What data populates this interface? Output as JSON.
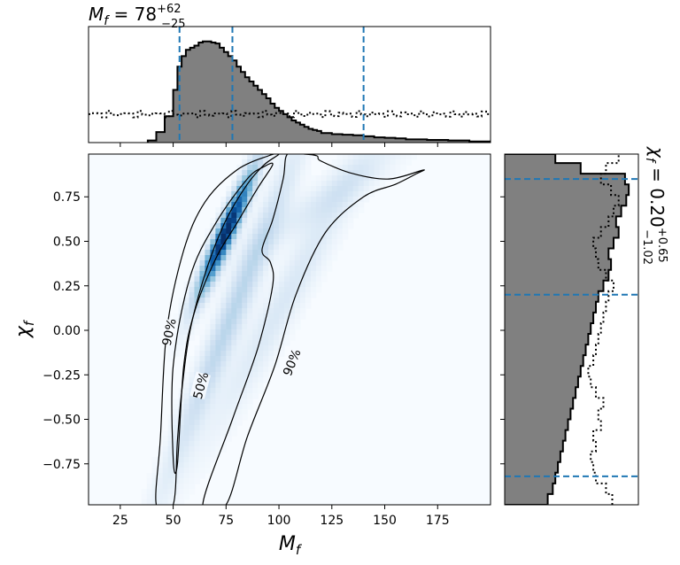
{
  "chart_data": [
    {
      "type": "histogram",
      "name": "Mf marginal",
      "title": {
        "base": "M",
        "sub": "f",
        "middle": " = 78",
        "sup": "+62",
        "subscript": "−25"
      },
      "xlim": [
        10,
        200
      ],
      "quantiles": [
        53,
        78,
        140
      ],
      "quantile_color": "#1f77b4",
      "fill_color": "#808080",
      "bins": [
        38,
        42,
        46,
        50,
        52,
        54,
        56,
        58,
        60,
        62,
        64,
        66,
        68,
        70,
        72,
        74,
        76,
        78,
        80,
        82,
        84,
        86,
        88,
        90,
        92,
        94,
        96,
        98,
        100,
        102,
        104,
        106,
        108,
        110,
        112,
        114,
        116,
        118,
        120,
        125,
        130,
        135,
        140,
        145,
        150,
        155,
        160,
        170,
        180,
        190,
        200
      ],
      "density": [
        0.02,
        0.1,
        0.25,
        0.5,
        0.72,
        0.82,
        0.88,
        0.9,
        0.92,
        0.95,
        0.96,
        0.96,
        0.95,
        0.94,
        0.9,
        0.86,
        0.82,
        0.78,
        0.72,
        0.67,
        0.62,
        0.58,
        0.54,
        0.5,
        0.46,
        0.42,
        0.37,
        0.33,
        0.3,
        0.27,
        0.24,
        0.21,
        0.19,
        0.17,
        0.15,
        0.13,
        0.12,
        0.11,
        0.09,
        0.08,
        0.075,
        0.07,
        0.06,
        0.05,
        0.045,
        0.04,
        0.03,
        0.025,
        0.02,
        0.01
      ],
      "prior_level": 0.27
    },
    {
      "type": "heatmap",
      "name": "joint density",
      "xlabel": {
        "base": "M",
        "sub": "f"
      },
      "ylabel": {
        "base": "χ",
        "sub": "f"
      },
      "xlim": [
        10,
        200
      ],
      "ylim": [
        -0.98,
        0.99
      ],
      "xticks": [
        25,
        50,
        75,
        100,
        125,
        150,
        175
      ],
      "yticks": [
        -0.75,
        -0.5,
        -0.25,
        0.0,
        0.25,
        0.5,
        0.75
      ],
      "ytick_labels": [
        "−0.75",
        "−0.50",
        "−0.25",
        "0.00",
        "0.25",
        "0.50",
        "0.75"
      ],
      "colormap": "Blues",
      "contours": [
        {
          "level": "50%",
          "points": [
            [
              50,
              -0.72
            ],
            [
              52,
              -0.75
            ],
            [
              55,
              -0.2
            ],
            [
              60,
              0.1
            ],
            [
              70,
              0.4
            ],
            [
              80,
              0.6
            ],
            [
              90,
              0.8
            ],
            [
              97,
              0.93
            ],
            [
              93,
              0.92
            ],
            [
              85,
              0.85
            ],
            [
              70,
              0.6
            ],
            [
              58,
              0.3
            ],
            [
              50,
              -0.2
            ]
          ]
        },
        {
          "level": "90%",
          "points": [
            [
              42,
              -0.98
            ],
            [
              44,
              -0.6
            ],
            [
              47,
              0.0
            ],
            [
              55,
              0.45
            ],
            [
              65,
              0.72
            ],
            [
              80,
              0.9
            ],
            [
              95,
              0.98
            ],
            [
              100,
              0.99
            ],
            [
              93,
              0.93
            ],
            [
              85,
              0.82
            ],
            [
              75,
              0.62
            ],
            [
              66,
              0.35
            ],
            [
              58,
              0.0
            ],
            [
              54,
              -0.35
            ],
            [
              52,
              -0.62
            ],
            [
              50,
              -0.98
            ]
          ]
        },
        {
          "level": "90%",
          "points": [
            [
              92,
              0.45
            ],
            [
              97,
              0.62
            ],
            [
              102,
              0.85
            ],
            [
              104,
              0.99
            ],
            [
              112,
              0.99
            ],
            [
              118,
              0.98
            ],
            [
              120,
              0.95
            ],
            [
              135,
              0.88
            ],
            [
              152,
              0.85
            ],
            [
              168,
              0.9
            ],
            [
              165,
              0.88
            ],
            [
              155,
              0.82
            ],
            [
              140,
              0.75
            ],
            [
              122,
              0.55
            ],
            [
              108,
              0.2
            ],
            [
              98,
              -0.2
            ],
            [
              85,
              -0.6
            ],
            [
              75,
              -0.98
            ],
            [
              64,
              -0.98
            ],
            [
              78,
              -0.5
            ],
            [
              90,
              -0.1
            ],
            [
              97,
              0.25
            ],
            [
              96,
              0.38
            ]
          ]
        }
      ],
      "contour_labels": [
        {
          "text": "90%",
          "x": 48,
          "y": -0.01,
          "rotate": -78
        },
        {
          "text": "50%",
          "x": 63,
          "y": -0.31,
          "rotate": -75
        },
        {
          "text": "90%",
          "x": 106,
          "y": -0.18,
          "rotate": -68
        }
      ]
    },
    {
      "type": "histogram",
      "name": "chi_f marginal",
      "orientation": "horizontal",
      "title": {
        "base": "χ",
        "sub": "f",
        "middle": " = 0.20",
        "sup": "+0.65",
        "subscript": "−1.02"
      },
      "ylim": [
        -0.98,
        0.99
      ],
      "quantiles": [
        -0.82,
        0.2,
        0.85
      ],
      "quantile_color": "#1f77b4",
      "fill_color": "#808080",
      "bins": [
        -0.98,
        -0.92,
        -0.86,
        -0.8,
        -0.74,
        -0.68,
        -0.62,
        -0.56,
        -0.5,
        -0.44,
        -0.38,
        -0.32,
        -0.26,
        -0.2,
        -0.14,
        -0.08,
        -0.02,
        0.04,
        0.1,
        0.16,
        0.22,
        0.28,
        0.34,
        0.4,
        0.46,
        0.52,
        0.58,
        0.64,
        0.7,
        0.76,
        0.82,
        0.88,
        0.94,
        0.99
      ],
      "density": [
        0.34,
        0.38,
        0.4,
        0.42,
        0.44,
        0.46,
        0.48,
        0.5,
        0.52,
        0.54,
        0.56,
        0.58,
        0.6,
        0.62,
        0.64,
        0.66,
        0.68,
        0.7,
        0.72,
        0.74,
        0.78,
        0.82,
        0.84,
        0.82,
        0.86,
        0.9,
        0.88,
        0.92,
        0.96,
        0.98,
        0.95,
        0.6,
        0.4
      ],
      "prior_level": [
        0.85,
        0.8,
        0.72,
        0.7,
        0.68,
        0.72,
        0.7,
        0.76,
        0.74,
        0.78,
        0.72,
        0.68,
        0.66,
        0.7,
        0.72,
        0.74,
        0.76,
        0.78,
        0.8,
        0.82,
        0.86,
        0.8,
        0.74,
        0.72,
        0.7,
        0.76,
        0.82,
        0.86,
        0.9,
        0.84,
        0.76,
        0.8,
        0.9
      ]
    }
  ]
}
